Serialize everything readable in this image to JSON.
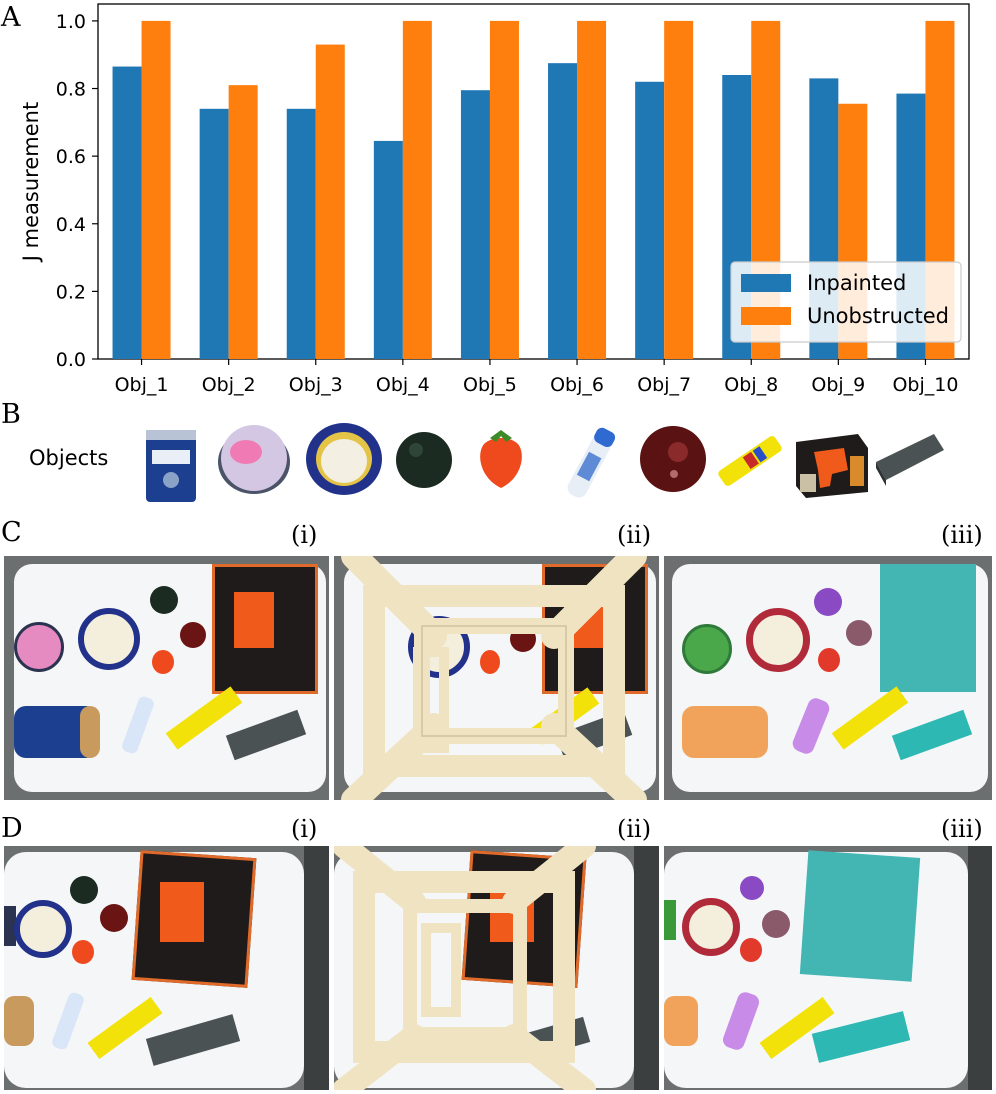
{
  "panels": {
    "a": "A",
    "b": "B",
    "c": "C",
    "d": "D"
  },
  "objects_label": "Objects",
  "row_c_labels": [
    "(i)",
    "(ii)",
    "(iii)"
  ],
  "row_d_labels": [
    "(i)",
    "(ii)",
    "(iii)"
  ],
  "object_thumbnails": [
    "coffee-can",
    "pink-ball",
    "tape-roll",
    "dark-green-ball",
    "strawberry",
    "spray-bottle",
    "plum",
    "yellow-tube",
    "drill-box",
    "eraser"
  ],
  "chart_data": {
    "type": "bar",
    "title": "",
    "xlabel": "",
    "ylabel": "J measurement",
    "categories": [
      "Obj_1",
      "Obj_2",
      "Obj_3",
      "Obj_4",
      "Obj_5",
      "Obj_6",
      "Obj_7",
      "Obj_8",
      "Obj_9",
      "Obj_10"
    ],
    "series": [
      {
        "name": "Inpainted",
        "color": "#1f77b4",
        "values": [
          0.865,
          0.74,
          0.74,
          0.645,
          0.795,
          0.875,
          0.82,
          0.84,
          0.83,
          0.785
        ]
      },
      {
        "name": "Unobstructed",
        "color": "#ff7f0e",
        "values": [
          1.0,
          0.81,
          0.93,
          1.0,
          1.0,
          1.0,
          1.0,
          1.0,
          0.755,
          1.0
        ]
      }
    ],
    "ylim": [
      0,
      1.05
    ],
    "yticks": [
      "0.0",
      "0.2",
      "0.4",
      "0.6",
      "0.8",
      "1.0"
    ],
    "legend": "lower-right",
    "grid": false
  }
}
